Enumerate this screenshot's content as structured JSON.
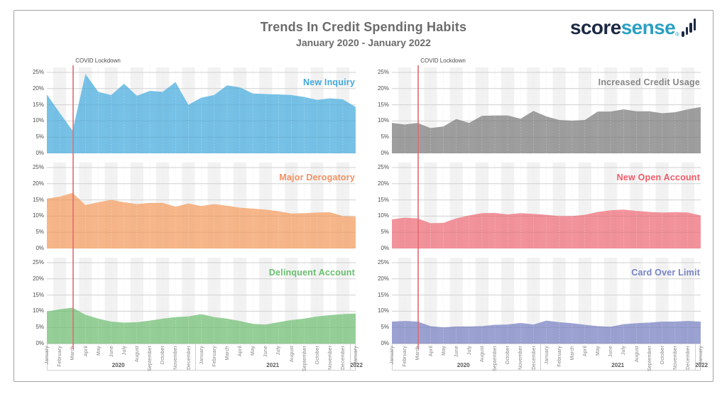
{
  "header": {
    "title": "Trends In Credit Spending Habits",
    "subtitle": "January 2020 - January 2022",
    "logo": {
      "part1": "score",
      "part2": "sense",
      "reg": "®",
      "icon": "ascending-bars-icon"
    }
  },
  "annotation": {
    "label": "COVID Lockdown",
    "month_index": 2,
    "color": "#e16a70"
  },
  "theme": {
    "card_border": "#a3a3a3",
    "title_color": "#6b6b6b",
    "stripe": "#f2f2f2",
    "grid": "#dcdcdc",
    "grid_zero": "#c4c4c4",
    "axis_text": "#828282",
    "ytick_text": "#4d4d4d",
    "covid_line": "#e16a70",
    "logo_navy": "#1c2942",
    "logo_teal": "#2ba0c2"
  },
  "axis": {
    "y_ticks": [
      "25%",
      "20%",
      "15%",
      "10%",
      "5%",
      "0%"
    ],
    "months": [
      "January",
      "February",
      "March",
      "April",
      "May",
      "June",
      "July",
      "August",
      "September",
      "October",
      "November",
      "December",
      "January",
      "February",
      "March",
      "April",
      "May",
      "June",
      "July",
      "August",
      "September",
      "October",
      "November",
      "December",
      "January"
    ],
    "years": [
      {
        "label": "2020",
        "span": [
          0,
          11
        ]
      },
      {
        "label": "2021",
        "span": [
          12,
          23
        ]
      },
      {
        "label": "2022",
        "span": [
          24,
          24
        ]
      }
    ],
    "year_separators": [
      11.5,
      23.5
    ]
  },
  "chart_data": [
    {
      "id": "new-inquiry",
      "name": "New Inquiry",
      "type": "area",
      "column": 0,
      "row": 0,
      "color": "#5fb6e2",
      "label_color": "#41a8dd",
      "ylabel": "",
      "ylim": [
        0,
        25
      ],
      "grid": true,
      "values": [
        18.2,
        12.5,
        7.0,
        24.5,
        19.0,
        18.0,
        21.5,
        17.8,
        19.3,
        19.0,
        22.0,
        15.0,
        17.2,
        18.0,
        21.0,
        20.4,
        18.5,
        18.3,
        18.2,
        18.0,
        17.4,
        16.5,
        17.0,
        16.7,
        14.3
      ]
    },
    {
      "id": "major-derogatory",
      "name": "Major Derogatory",
      "type": "area",
      "column": 0,
      "row": 1,
      "color": "#f4a974",
      "label_color": "#f29163",
      "ylabel": "",
      "ylim": [
        0,
        25
      ],
      "grid": true,
      "values": [
        15.4,
        16.0,
        17.2,
        13.4,
        14.3,
        15.0,
        14.3,
        13.7,
        14.1,
        14.1,
        12.9,
        13.9,
        13.1,
        13.7,
        13.2,
        12.6,
        12.3,
        12.0,
        11.5,
        10.8,
        10.9,
        11.1,
        11.2,
        10.0,
        9.8
      ]
    },
    {
      "id": "delinquent-account",
      "name": "Delinquent Account",
      "type": "area",
      "column": 0,
      "row": 2,
      "color": "#82c785",
      "label_color": "#68bf6e",
      "ylabel": "",
      "ylim": [
        0,
        25
      ],
      "grid": true,
      "values": [
        9.9,
        10.6,
        11.1,
        8.9,
        7.7,
        6.8,
        6.5,
        6.6,
        7.1,
        7.7,
        8.2,
        8.4,
        9.1,
        8.2,
        7.7,
        7.0,
        6.1,
        5.9,
        6.6,
        7.3,
        7.7,
        8.4,
        8.8,
        9.1,
        9.3
      ]
    },
    {
      "id": "increased-credit-usage",
      "name": "Increased Credit Usage",
      "type": "area",
      "column": 1,
      "row": 0,
      "color": "#8d8d8d",
      "label_color": "#878787",
      "ylabel": "",
      "ylim": [
        0,
        25
      ],
      "grid": true,
      "values": [
        9.4,
        8.9,
        9.4,
        7.8,
        8.3,
        10.6,
        9.4,
        11.6,
        11.7,
        11.7,
        10.7,
        13.1,
        11.4,
        10.3,
        10.1,
        10.3,
        12.9,
        12.9,
        13.6,
        13.0,
        13.0,
        12.4,
        12.7,
        13.6,
        14.3
      ]
    },
    {
      "id": "new-open-account",
      "name": "New Open Account",
      "type": "area",
      "column": 1,
      "row": 1,
      "color": "#f08089",
      "label_color": "#f25a65",
      "ylabel": "",
      "ylim": [
        0,
        25
      ],
      "grid": true,
      "values": [
        9.0,
        9.5,
        9.3,
        7.8,
        7.9,
        9.3,
        10.2,
        10.9,
        11.0,
        10.5,
        10.9,
        10.7,
        10.4,
        10.0,
        10.0,
        10.4,
        11.3,
        11.8,
        12.0,
        11.6,
        11.3,
        11.1,
        11.2,
        11.1,
        10.2
      ]
    },
    {
      "id": "card-over-limit",
      "name": "Card Over Limit",
      "type": "area",
      "column": 1,
      "row": 2,
      "color": "#8a92ca",
      "label_color": "#7583c4",
      "ylabel": "",
      "ylim": [
        0,
        25
      ],
      "grid": true,
      "values": [
        6.8,
        7.0,
        6.8,
        5.4,
        5.0,
        5.3,
        5.3,
        5.4,
        5.8,
        5.9,
        6.4,
        5.9,
        7.1,
        6.6,
        6.3,
        5.8,
        5.4,
        5.2,
        6.0,
        6.3,
        6.5,
        6.8,
        6.8,
        7.0,
        6.8
      ]
    }
  ]
}
